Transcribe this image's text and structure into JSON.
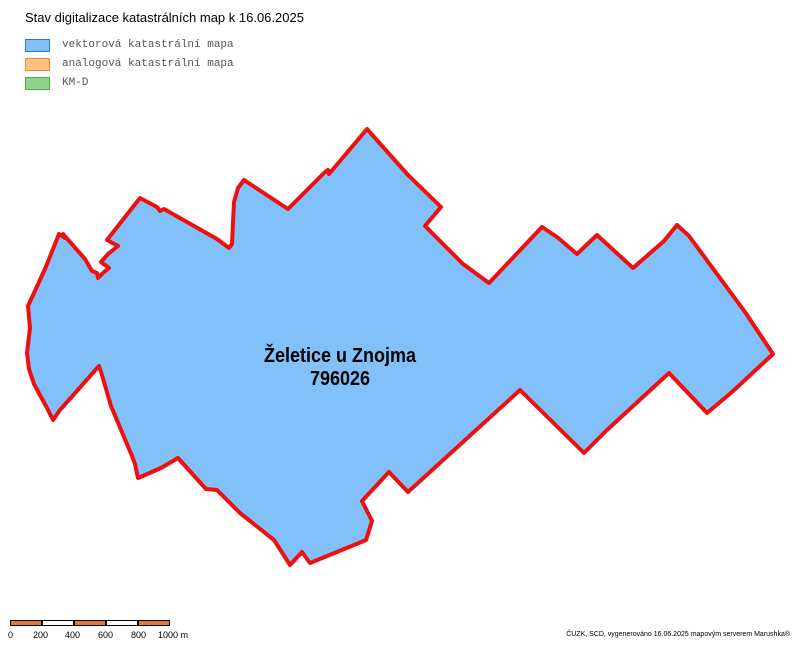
{
  "map": {
    "title": "Stav digitalizace katastrálních map k 16.06.2025",
    "legend": [
      {
        "label": "vektorová katastrální mapa",
        "fill": "#82c0fa",
        "stroke": "#2a7ad2"
      },
      {
        "label": "analogová katastrální mapa",
        "fill": "#fec080",
        "stroke": "#f08a30"
      },
      {
        "label": "KM-D",
        "fill": "#8fd48a",
        "stroke": "#4aab44"
      }
    ],
    "area": {
      "name": "Želetice u Znojma",
      "code": "796026",
      "fill": "#82c0fa",
      "border": "#ee0f0f"
    },
    "scalebar": {
      "labels": [
        "0",
        "200",
        "400",
        "600",
        "800",
        "1000 m"
      ],
      "colors": [
        "#e07a30",
        "#ffffff",
        "#e07a30",
        "#ffffff",
        "#e07a30"
      ]
    },
    "credits": "ČUZK, SCD, vygenerováno 16.06.2025 mapovým serverem Marushka®"
  }
}
